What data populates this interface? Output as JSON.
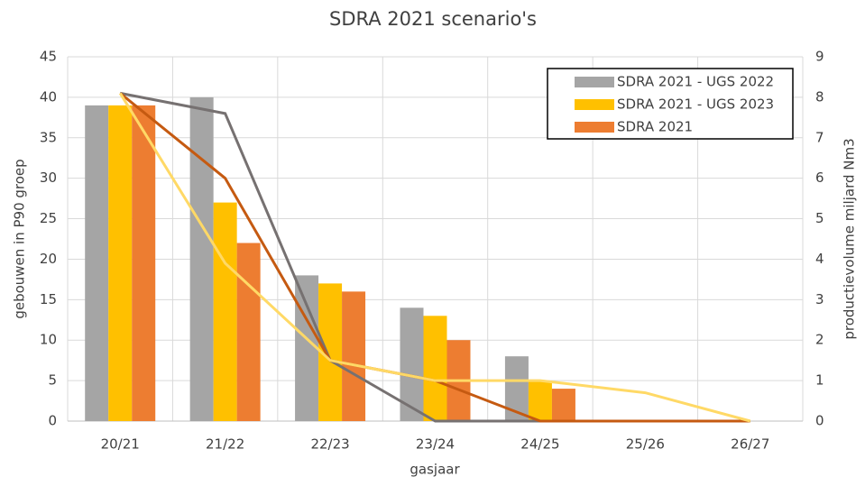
{
  "chart_data": {
    "type": "bar-line",
    "title": "SDRA 2021 scenario's",
    "x_label": "gasjaar",
    "y_label": "gebouwen in P90 groep",
    "y2_label": "productievolume miljard Nm3",
    "categories": [
      "20/21",
      "21/22",
      "22/23",
      "23/24",
      "24/25",
      "25/26",
      "26/27"
    ],
    "series": [
      {
        "name": "SDRA 2021 - UGS 2022",
        "type": "bar",
        "color": "#a5a5a5",
        "values": [
          39,
          40,
          18,
          14,
          8,
          0,
          0
        ]
      },
      {
        "name": "SDRA 2021 - UGS 2023",
        "type": "bar",
        "color": "#ffc000",
        "values": [
          39,
          27,
          17,
          13,
          5,
          0,
          0
        ]
      },
      {
        "name": "SDRA 2021",
        "type": "bar",
        "color": "#ed7d31",
        "values": [
          39,
          22,
          16,
          10,
          4,
          0,
          0
        ]
      },
      {
        "type": "line",
        "axis": "y2",
        "color": "#767171",
        "values": [
          8.1,
          7.6,
          1.5,
          0,
          0,
          0,
          0
        ]
      },
      {
        "type": "line",
        "axis": "y2",
        "color": "#c55a11",
        "values": [
          8.1,
          6.0,
          1.5,
          1.0,
          0,
          0,
          0
        ]
      },
      {
        "type": "line",
        "axis": "y2",
        "color": "#ffd966",
        "values": [
          8.1,
          3.9,
          1.5,
          1.0,
          1.0,
          0.7,
          0
        ]
      }
    ],
    "ylim": [
      0,
      45
    ],
    "yticks": [
      0,
      5,
      10,
      15,
      20,
      25,
      30,
      35,
      40,
      45
    ],
    "y2lim": [
      0,
      9
    ],
    "y2ticks": [
      0,
      1,
      2,
      3,
      4,
      5,
      6,
      7,
      8,
      9
    ],
    "grid": true
  }
}
